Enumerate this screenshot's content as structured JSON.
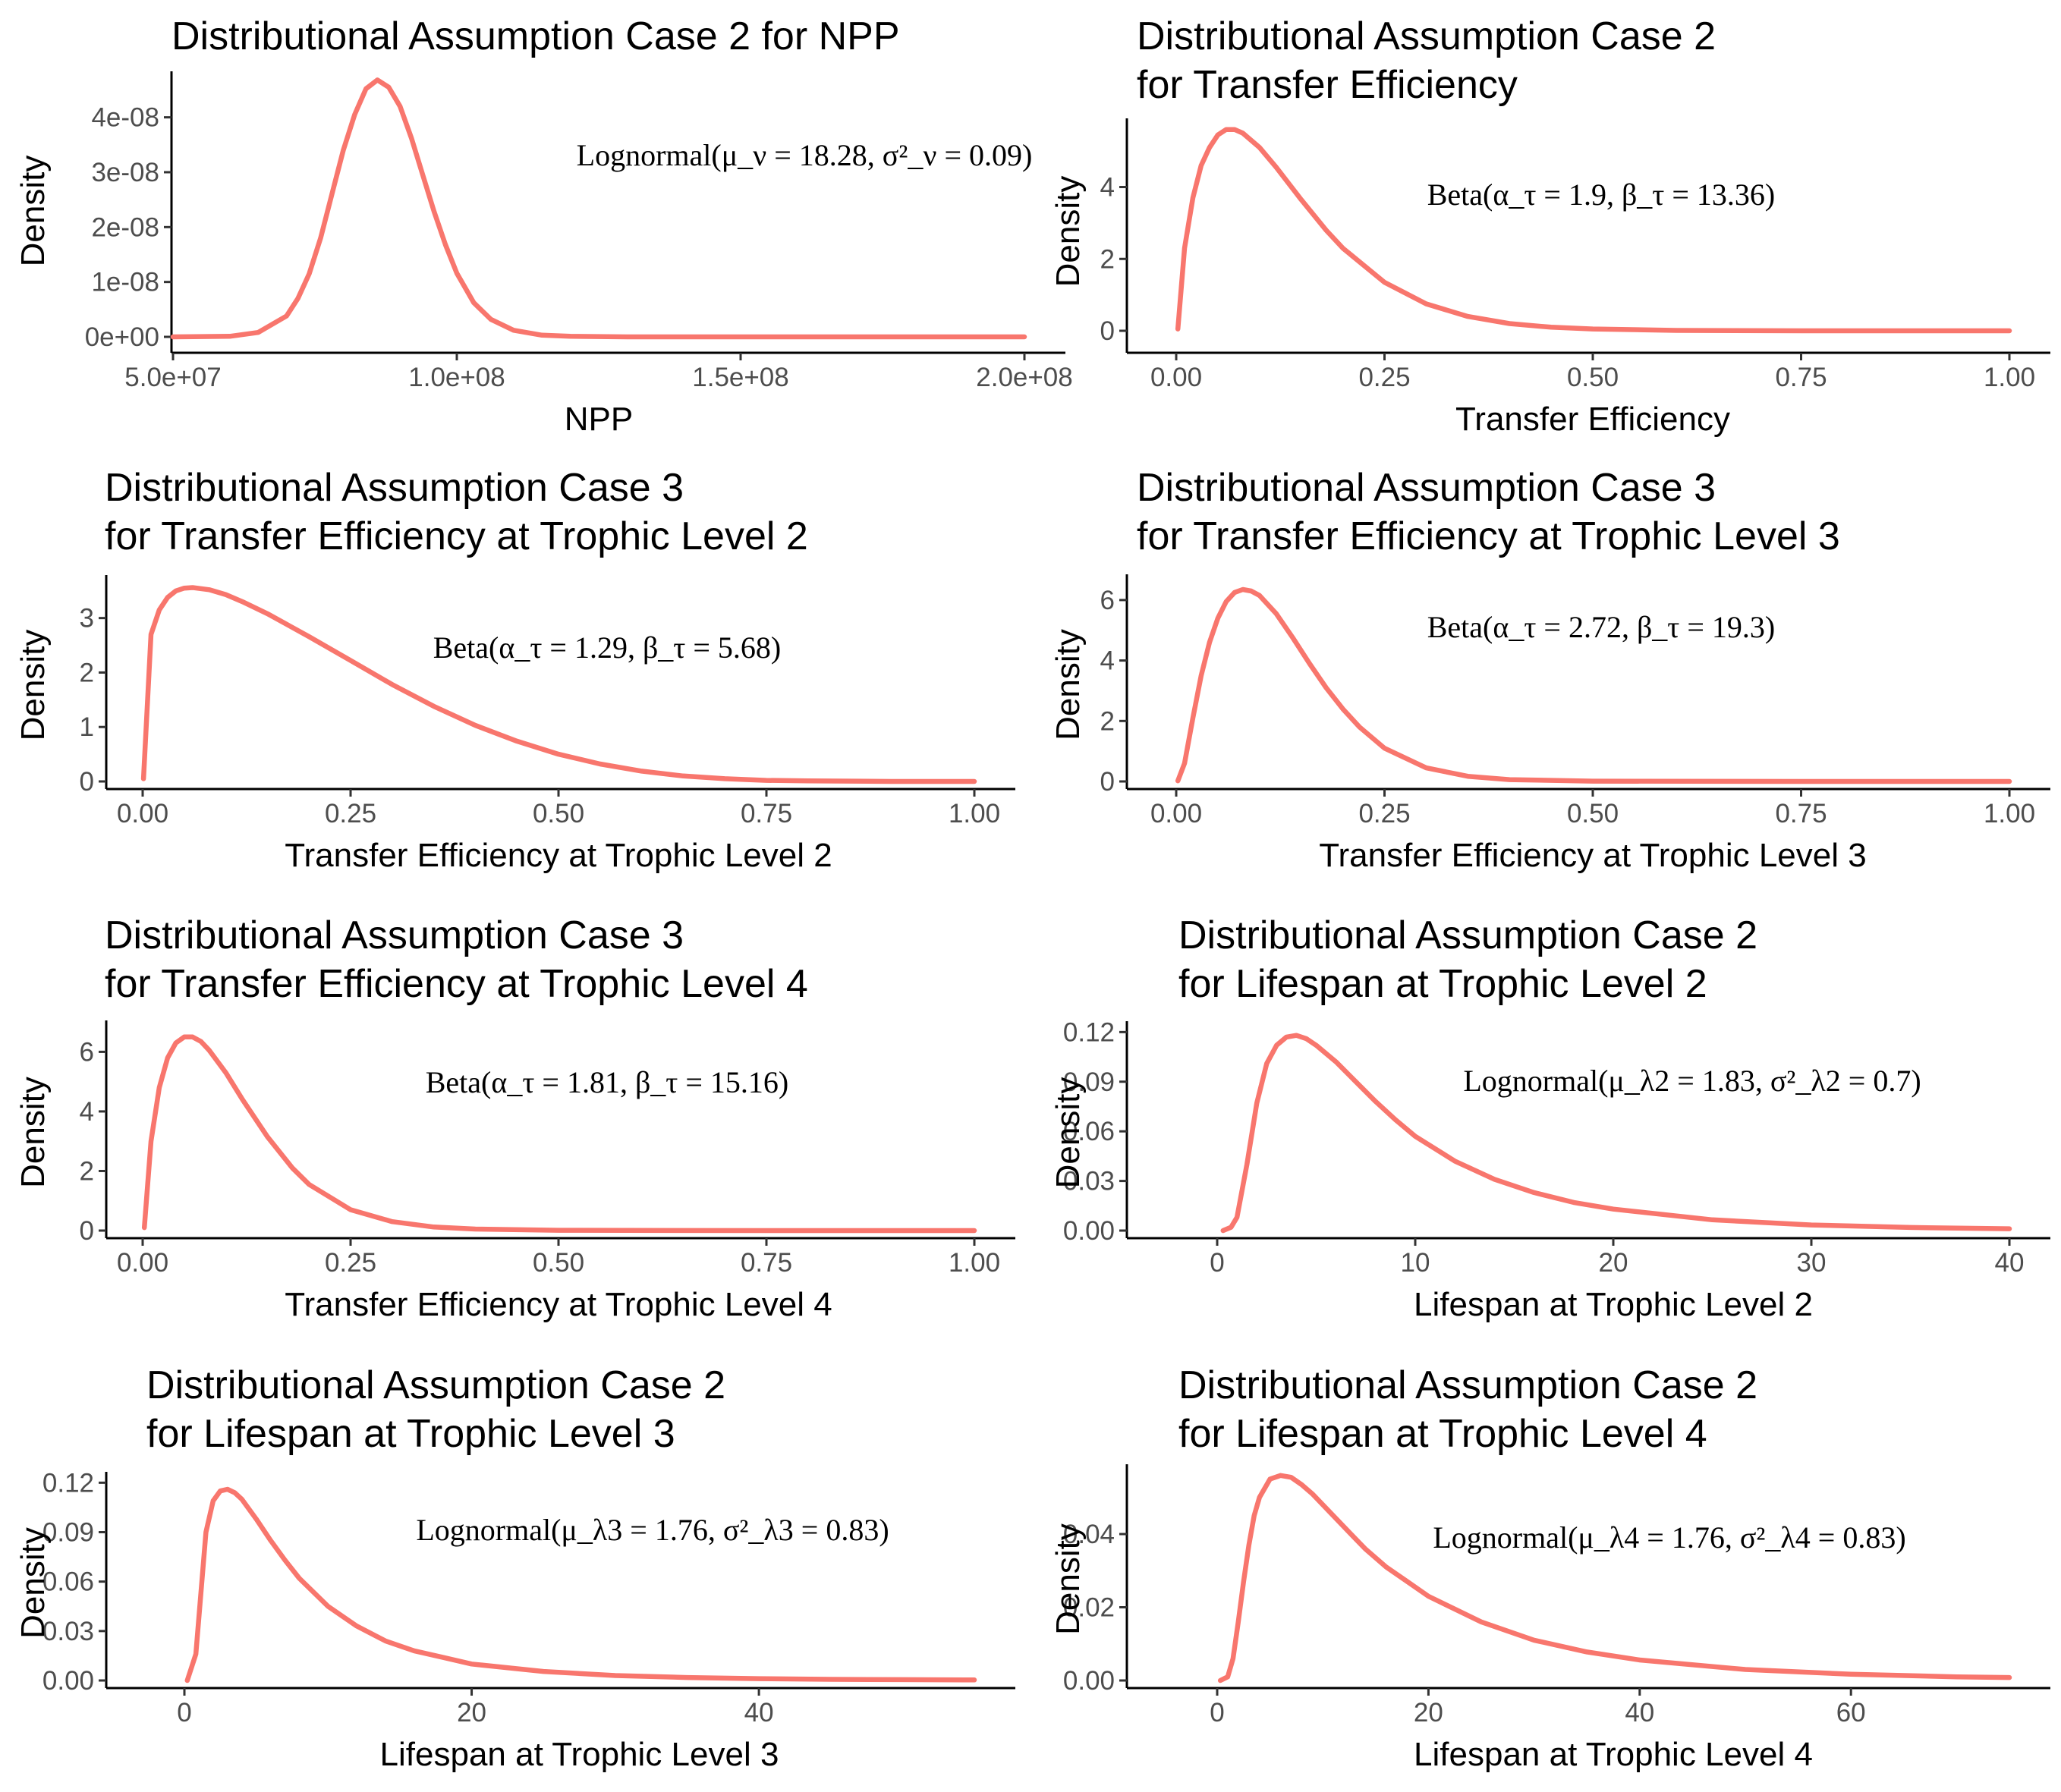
{
  "style": {
    "line_color": "#F8766D",
    "background": "#FFFFFF",
    "axis_color": "#000000",
    "tick_label_color": "#4D4D4D"
  },
  "chart_data": [
    {
      "type": "line",
      "title": [
        "Distributional Assumption Case 2 for NPP"
      ],
      "xlabel": "NPP",
      "ylabel": "Density",
      "annotation": "Lognormal(μ_ν = 18.28, σ²_ν = 0.09)",
      "xlim": [
        50000000,
        200000000
      ],
      "ylim": [
        0,
        4.7e-08
      ],
      "xticks": [
        50000000,
        100000000,
        150000000,
        200000000
      ],
      "xtick_labels": [
        "5.0e+07",
        "1.0e+08",
        "1.5e+08",
        "2.0e+08"
      ],
      "yticks": [
        0,
        1e-08,
        2e-08,
        3e-08,
        4e-08
      ],
      "ytick_labels": [
        "0e+00",
        "1e-08",
        "2e-08",
        "3e-08",
        "4e-08"
      ],
      "x": [
        50000000,
        60000000,
        65000000,
        70000000,
        72000000,
        74000000,
        76000000,
        78000000,
        80000000,
        82000000,
        84000000,
        86000000,
        88000000,
        90000000,
        92000000,
        94000000,
        96000000,
        98000000,
        100000000,
        103000000,
        106000000,
        110000000,
        115000000,
        120000000,
        130000000,
        150000000,
        200000000
      ],
      "y": [
        0,
        1e-10,
        8e-10,
        3.8e-09,
        7e-09,
        1.15e-08,
        1.8e-08,
        2.6e-08,
        3.4e-08,
        4.05e-08,
        4.52e-08,
        4.68e-08,
        4.55e-08,
        4.2e-08,
        3.62e-08,
        2.95e-08,
        2.28e-08,
        1.68e-08,
        1.16e-08,
        6.2e-09,
        3.2e-09,
        1.2e-09,
        3e-10,
        1e-10,
        0,
        0,
        0
      ]
    },
    {
      "type": "line",
      "title": [
        "Distributional Assumption Case 2",
        "for Transfer Efficiency"
      ],
      "xlabel": "Transfer Efficiency",
      "ylabel": "Density",
      "annotation": "Beta(α_τ = 1.9, β_τ = 13.36)",
      "xlim": [
        0,
        1
      ],
      "ylim": [
        0,
        5.7
      ],
      "xticks": [
        0,
        0.25,
        0.5,
        0.75,
        1
      ],
      "xtick_labels": [
        "0.00",
        "0.25",
        "0.50",
        "0.75",
        "1.00"
      ],
      "yticks": [
        0,
        2,
        4
      ],
      "ytick_labels": [
        "0",
        "2",
        "4"
      ],
      "x": [
        0.002,
        0.01,
        0.02,
        0.03,
        0.04,
        0.05,
        0.06,
        0.07,
        0.08,
        0.1,
        0.12,
        0.15,
        0.18,
        0.2,
        0.25,
        0.3,
        0.35,
        0.4,
        0.45,
        0.5,
        0.6,
        0.75,
        1.0
      ],
      "y": [
        0.05,
        2.3,
        3.7,
        4.6,
        5.1,
        5.45,
        5.6,
        5.6,
        5.5,
        5.1,
        4.55,
        3.65,
        2.8,
        2.3,
        1.35,
        0.75,
        0.4,
        0.2,
        0.1,
        0.05,
        0.01,
        0,
        0
      ]
    },
    {
      "type": "line",
      "title": [
        "Distributional Assumption Case 3",
        "for Transfer Efficiency at Trophic Level 2"
      ],
      "xlabel": "Transfer Efficiency at Trophic Level 2",
      "ylabel": "Density",
      "annotation": "Beta(α_τ = 1.29, β_τ = 5.68)",
      "xlim": [
        0,
        1
      ],
      "ylim": [
        0,
        3.65
      ],
      "xticks": [
        0,
        0.25,
        0.5,
        0.75,
        1
      ],
      "xtick_labels": [
        "0.00",
        "0.25",
        "0.50",
        "0.75",
        "1.00"
      ],
      "yticks": [
        0,
        1,
        2,
        3
      ],
      "ytick_labels": [
        "0",
        "1",
        "2",
        "3"
      ],
      "x": [
        0.001,
        0.01,
        0.02,
        0.03,
        0.04,
        0.05,
        0.06,
        0.08,
        0.1,
        0.12,
        0.15,
        0.2,
        0.25,
        0.3,
        0.35,
        0.4,
        0.45,
        0.5,
        0.55,
        0.6,
        0.65,
        0.7,
        0.75,
        0.8,
        0.9,
        1.0
      ],
      "y": [
        0.05,
        2.7,
        3.15,
        3.38,
        3.5,
        3.55,
        3.56,
        3.52,
        3.43,
        3.3,
        3.08,
        2.66,
        2.22,
        1.78,
        1.38,
        1.03,
        0.74,
        0.5,
        0.32,
        0.19,
        0.1,
        0.05,
        0.02,
        0.01,
        0,
        0
      ]
    },
    {
      "type": "line",
      "title": [
        "Distributional Assumption Case 3",
        "for Transfer Efficiency at Trophic Level 3"
      ],
      "xlabel": "Transfer Efficiency at Trophic Level 3",
      "ylabel": "Density",
      "annotation": "Beta(α_τ = 2.72, β_τ = 19.3)",
      "xlim": [
        0,
        1
      ],
      "ylim": [
        0,
        6.6
      ],
      "xticks": [
        0,
        0.25,
        0.5,
        0.75,
        1
      ],
      "xtick_labels": [
        "0.00",
        "0.25",
        "0.50",
        "0.75",
        "1.00"
      ],
      "yticks": [
        0,
        2,
        4,
        6
      ],
      "ytick_labels": [
        "0",
        "2",
        "4",
        "6"
      ],
      "x": [
        0.002,
        0.01,
        0.02,
        0.03,
        0.04,
        0.05,
        0.06,
        0.07,
        0.08,
        0.09,
        0.1,
        0.12,
        0.14,
        0.16,
        0.18,
        0.2,
        0.22,
        0.25,
        0.3,
        0.35,
        0.4,
        0.5,
        0.75,
        1.0
      ],
      "y": [
        0.02,
        0.6,
        2.1,
        3.5,
        4.6,
        5.4,
        5.95,
        6.25,
        6.35,
        6.3,
        6.15,
        5.55,
        4.75,
        3.9,
        3.1,
        2.4,
        1.8,
        1.1,
        0.45,
        0.17,
        0.06,
        0.01,
        0,
        0
      ]
    },
    {
      "type": "line",
      "title": [
        "Distributional Assumption Case 3",
        "for Transfer Efficiency at Trophic Level 4"
      ],
      "xlabel": "Transfer Efficiency at Trophic Level 4",
      "ylabel": "Density",
      "annotation": "Beta(α_τ = 1.81, β_τ = 15.16)",
      "xlim": [
        0,
        1
      ],
      "ylim": [
        0,
        6.8
      ],
      "xticks": [
        0,
        0.25,
        0.5,
        0.75,
        1
      ],
      "xtick_labels": [
        "0.00",
        "0.25",
        "0.50",
        "0.75",
        "1.00"
      ],
      "yticks": [
        0,
        2,
        4,
        6
      ],
      "ytick_labels": [
        "0",
        "2",
        "4",
        "6"
      ],
      "x": [
        0.002,
        0.01,
        0.02,
        0.03,
        0.04,
        0.05,
        0.06,
        0.07,
        0.08,
        0.1,
        0.12,
        0.15,
        0.18,
        0.2,
        0.25,
        0.3,
        0.35,
        0.4,
        0.5,
        0.75,
        1.0
      ],
      "y": [
        0.1,
        3.0,
        4.8,
        5.8,
        6.3,
        6.5,
        6.5,
        6.35,
        6.05,
        5.3,
        4.4,
        3.15,
        2.1,
        1.55,
        0.7,
        0.3,
        0.12,
        0.05,
        0.01,
        0,
        0
      ]
    },
    {
      "type": "line",
      "title": [
        "Distributional Assumption Case 2",
        "for Lifespan at Trophic Level 2"
      ],
      "xlabel": "Lifespan at Trophic Level 2",
      "ylabel": "Density",
      "annotation": "Lognormal(μ_λ2 = 1.83, σ²_λ2 = 0.7)",
      "xlim": [
        0,
        40
      ],
      "ylim": [
        0,
        0.122
      ],
      "xticks": [
        0,
        10,
        20,
        30,
        40
      ],
      "xtick_labels": [
        "0",
        "10",
        "20",
        "30",
        "40"
      ],
      "yticks": [
        0,
        0.03,
        0.06,
        0.09,
        0.12
      ],
      "ytick_labels": [
        "0.00",
        "0.03",
        "0.06",
        "0.09",
        "0.12"
      ],
      "x": [
        0.3,
        0.7,
        1,
        1.5,
        2,
        2.5,
        3,
        3.5,
        4,
        4.5,
        5,
        6,
        7,
        8,
        9,
        10,
        12,
        14,
        16,
        18,
        20,
        25,
        30,
        35,
        40
      ],
      "y": [
        0,
        0.002,
        0.008,
        0.04,
        0.077,
        0.101,
        0.112,
        0.117,
        0.118,
        0.116,
        0.112,
        0.102,
        0.09,
        0.078,
        0.067,
        0.057,
        0.042,
        0.031,
        0.023,
        0.017,
        0.013,
        0.0065,
        0.0034,
        0.0019,
        0.0011
      ]
    },
    {
      "type": "line",
      "title": [
        "Distributional Assumption Case 2",
        "for Lifespan at Trophic Level 3"
      ],
      "xlabel": "Lifespan at Trophic Level 3",
      "ylabel": "Density",
      "annotation": "Lognormal(μ_λ3 = 1.76, σ²_λ3 = 0.83)",
      "xlim": [
        0,
        55
      ],
      "ylim": [
        0,
        0.122
      ],
      "xticks": [
        0,
        20,
        40
      ],
      "xtick_labels": [
        "0",
        "20",
        "40"
      ],
      "yticks": [
        0,
        0.03,
        0.06,
        0.09,
        0.12
      ],
      "ytick_labels": [
        "0.00",
        "0.03",
        "0.06",
        "0.09",
        "0.12"
      ],
      "x": [
        0.2,
        0.8,
        1.5,
        2,
        2.5,
        3,
        3.5,
        4,
        5,
        6,
        7,
        8,
        10,
        12,
        14,
        16,
        18,
        20,
        25,
        30,
        35,
        40,
        45,
        50,
        55
      ],
      "y": [
        0,
        0.016,
        0.09,
        0.109,
        0.115,
        0.116,
        0.114,
        0.11,
        0.098,
        0.085,
        0.073,
        0.062,
        0.045,
        0.033,
        0.024,
        0.018,
        0.014,
        0.01,
        0.0055,
        0.003,
        0.0018,
        0.0011,
        0.0007,
        0.0005,
        0.0003
      ]
    },
    {
      "type": "line",
      "title": [
        "Distributional Assumption Case 2",
        "for Lifespan at Trophic Level 4"
      ],
      "xlabel": "Lifespan at Trophic Level 4",
      "ylabel": "Density",
      "annotation": "Lognormal(μ_λ4 = 1.76, σ²_λ4 = 0.83)",
      "xlim": [
        0,
        75
      ],
      "ylim": [
        0,
        0.057
      ],
      "xticks": [
        0,
        20,
        40,
        60
      ],
      "xtick_labels": [
        "0",
        "20",
        "40",
        "60"
      ],
      "yticks": [
        0,
        0.02,
        0.04
      ],
      "ytick_labels": [
        "0.00",
        "0.02",
        "0.04"
      ],
      "x": [
        0.3,
        1,
        1.5,
        2,
        2.5,
        3,
        3.5,
        4,
        5,
        6,
        7,
        8,
        9,
        10,
        12,
        14,
        16,
        18,
        20,
        25,
        30,
        35,
        40,
        50,
        60,
        70,
        75
      ],
      "y": [
        0,
        0.001,
        0.006,
        0.016,
        0.027,
        0.037,
        0.045,
        0.05,
        0.055,
        0.056,
        0.0555,
        0.0535,
        0.051,
        0.048,
        0.042,
        0.036,
        0.031,
        0.027,
        0.023,
        0.016,
        0.011,
        0.0078,
        0.0056,
        0.003,
        0.0017,
        0.001,
        0.0008
      ]
    }
  ]
}
